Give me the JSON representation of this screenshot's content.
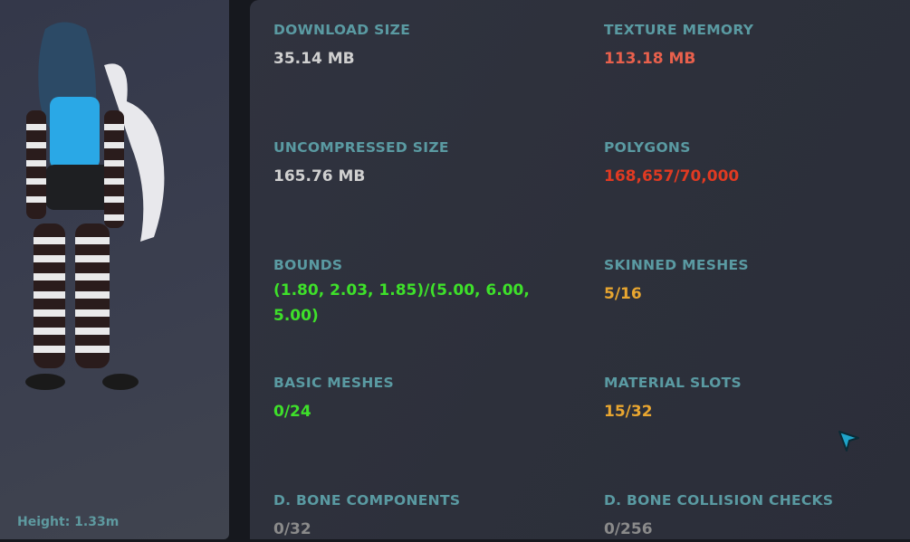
{
  "avatar_panel": {
    "height_label": "Height: 1.33m"
  },
  "stats": [
    {
      "label": "DOWNLOAD SIZE",
      "value": "35.14 MB",
      "color": "#d0d0d0"
    },
    {
      "label": "TEXTURE MEMORY",
      "value": "113.18 MB",
      "color": "#e8604c"
    },
    {
      "label": "UNCOMPRESSED SIZE",
      "value": "165.76 MB",
      "color": "#d0d0d0"
    },
    {
      "label": "POLYGONS",
      "value": "168,657/70,000",
      "color": "#e03a22"
    },
    {
      "label": "BOUNDS",
      "value": "(1.80, 2.03, 1.85)/(5.00, 6.00, 5.00)",
      "color": "#3ee02a"
    },
    {
      "label": "SKINNED MESHES",
      "value": "5/16",
      "color": "#e8a630"
    },
    {
      "label": "BASIC MESHES",
      "value": "0/24",
      "color": "#3ee02a"
    },
    {
      "label": "MATERIAL SLOTS",
      "value": "15/32",
      "color": "#e8a630"
    },
    {
      "label": "D. BONE COMPONENTS",
      "value": "0/32",
      "color": "#8a8a8a"
    },
    {
      "label": "D. BONE COLLISION CHECKS",
      "value": "0/256",
      "color": "#8a8a8a"
    }
  ]
}
